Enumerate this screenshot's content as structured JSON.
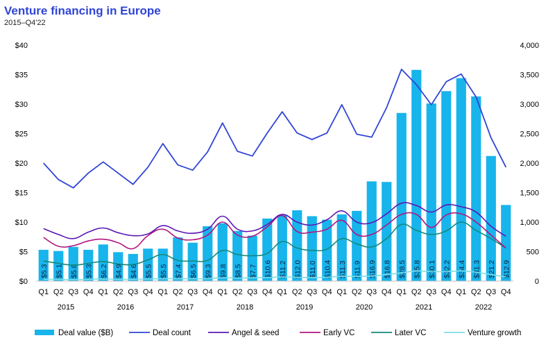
{
  "header": {
    "title": "Venture financing in Europe",
    "subtitle": "2015–Q4'22"
  },
  "colors": {
    "deal_value": "#18b4ec",
    "deal_count": "#2f45d6",
    "angel_seed": "#5a17b5",
    "early_vc": "#b1167e",
    "later_vc": "#13897a",
    "venture_growth": "#7fdde5"
  },
  "chart_data": {
    "type": "bar",
    "categories": [
      "Q1",
      "Q2",
      "Q3",
      "Q4",
      "Q1",
      "Q2",
      "Q3",
      "Q4",
      "Q1",
      "Q2",
      "Q3",
      "Q4",
      "Q1",
      "Q2",
      "Q3",
      "Q4",
      "Q1",
      "Q2",
      "Q3",
      "Q4",
      "Q1",
      "Q2",
      "Q3",
      "Q4",
      "Q1",
      "Q2",
      "Q3",
      "Q4",
      "Q1",
      "Q2",
      "Q3",
      "Q4"
    ],
    "years": [
      "2015",
      "2016",
      "2017",
      "2018",
      "2019",
      "2020",
      "2021",
      "2022"
    ],
    "y_left": {
      "ylim": [
        0,
        40
      ],
      "ticks": [
        "$0",
        "$5",
        "$10",
        "$15",
        "$20",
        "$25",
        "$30",
        "$35",
        "$40"
      ]
    },
    "y_right": {
      "ylim": [
        0,
        4000
      ],
      "ticks": [
        "0",
        "500",
        "1,000",
        "1,500",
        "2,000",
        "2,500",
        "3,000",
        "3,500",
        "4,000"
      ]
    },
    "bars": {
      "name": "Deal value ($B)",
      "axis": "left",
      "values": [
        5.3,
        5.1,
        5.8,
        5.3,
        6.2,
        4.9,
        4.6,
        5.5,
        5.5,
        7.4,
        6.5,
        9.3,
        9.8,
        8.5,
        7.7,
        10.6,
        11.2,
        12.0,
        11.0,
        10.4,
        11.3,
        11.9,
        16.9,
        16.8,
        28.5,
        35.8,
        30.1,
        32.2,
        34.4,
        31.3,
        21.2,
        12.9
      ],
      "labels": [
        "$5.3",
        "$5.1",
        "$5.8",
        "$5.3",
        "$6.2",
        "$4.9",
        "$4.6",
        "$5.5",
        "$5.5",
        "$7.4",
        "$6.5",
        "$9.3",
        "$9.8",
        "$8.5",
        "$7.7",
        "$10.6",
        "$11.2",
        "$12.0",
        "$11.0",
        "$10.4",
        "$11.3",
        "$11.9",
        "$16.9",
        "$16.8",
        "$28.5",
        "$35.8",
        "$30.1",
        "$32.2",
        "$34.4",
        "$31.3",
        "$21.2",
        "$12.9"
      ]
    },
    "series": [
      {
        "name": "Deal count",
        "axis": "right",
        "color": "#2f45d6",
        "values": [
          2000,
          1720,
          1580,
          1830,
          2020,
          1830,
          1640,
          1930,
          2330,
          1970,
          1880,
          2190,
          2680,
          2200,
          2120,
          2510,
          2870,
          2510,
          2400,
          2510,
          2990,
          2490,
          2440,
          2940,
          3590,
          3330,
          2990,
          3380,
          3510,
          3120,
          2430,
          1930
        ]
      },
      {
        "name": "Angel & seed",
        "axis": "right",
        "color": "#5a17b5",
        "values": [
          890,
          790,
          720,
          830,
          900,
          820,
          770,
          800,
          940,
          850,
          810,
          880,
          1100,
          880,
          850,
          960,
          1130,
          1000,
          950,
          1040,
          1190,
          1000,
          990,
          1140,
          1320,
          1280,
          1170,
          1290,
          1260,
          1170,
          930,
          760
        ]
      },
      {
        "name": "Early VC",
        "axis": "right",
        "color": "#b1167e",
        "values": [
          740,
          590,
          600,
          680,
          710,
          650,
          550,
          770,
          880,
          730,
          700,
          780,
          1000,
          780,
          760,
          920,
          1110,
          840,
          830,
          880,
          1030,
          790,
          790,
          950,
          1130,
          1130,
          910,
          1120,
          1140,
          1000,
          780,
          560
        ]
      },
      {
        "name": "Later VC",
        "axis": "right",
        "color": "#13897a",
        "values": [
          340,
          300,
          270,
          300,
          330,
          290,
          280,
          360,
          450,
          350,
          340,
          350,
          520,
          450,
          430,
          470,
          670,
          560,
          520,
          540,
          720,
          630,
          580,
          720,
          960,
          860,
          790,
          850,
          1000,
          860,
          720,
          560
        ]
      },
      {
        "name": "Venture growth",
        "axis": "right",
        "color": "#7fdde5",
        "values": [
          30,
          30,
          25,
          30,
          35,
          30,
          30,
          35,
          40,
          40,
          40,
          40,
          55,
          50,
          55,
          60,
          70,
          65,
          60,
          65,
          80,
          80,
          85,
          110,
          140,
          170,
          160,
          160,
          170,
          150,
          110,
          70
        ]
      }
    ],
    "legend_position": "bottom"
  }
}
